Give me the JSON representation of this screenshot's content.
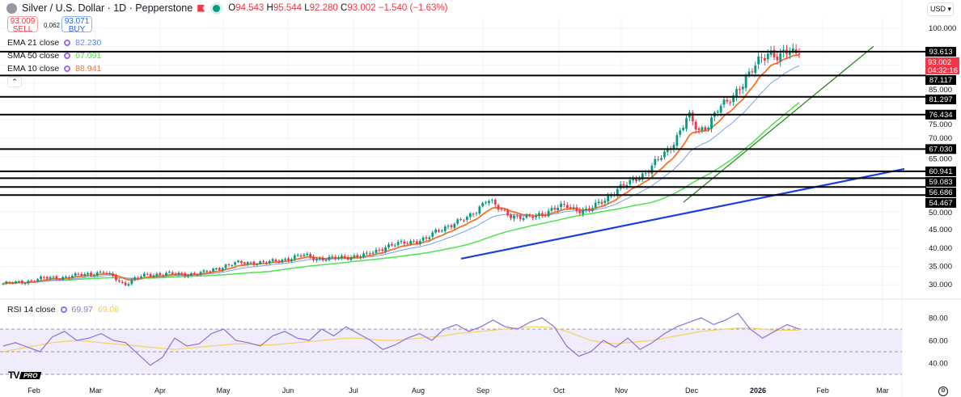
{
  "header": {
    "title": "Silver / U.S. Dollar · 1D · Pepperstone",
    "open_label": "O",
    "open": "94.543",
    "high_label": "H",
    "high": "95.544",
    "low_label": "L",
    "low": "92.280",
    "close_label": "C",
    "close": "93.002",
    "change": "−1.540 (−1.63%)"
  },
  "trade": {
    "sell_price": "93.009",
    "sell_label": "SELL",
    "spread": "0.062",
    "buy_price": "93.071",
    "buy_label": "BUY"
  },
  "indicators": [
    {
      "label": "EMA 21 close",
      "value": "82.230",
      "color": "#5b8af5"
    },
    {
      "label": "SMA 50 close",
      "value": "67.091",
      "color": "#4ee44e"
    },
    {
      "label": "EMA 10 close",
      "value": "88.941",
      "color": "#f7712a"
    }
  ],
  "rsi": {
    "label": "RSI 14 close",
    "value": "69.97",
    "ma_value": "69.08",
    "color": "#8e70d9",
    "ma_color": "#f6d25a",
    "levels": [
      "80.00",
      "60.00",
      "40.00"
    ]
  },
  "currency": "USD",
  "price_axis": [
    "100.000",
    "85.000",
    "75.000",
    "70.000",
    "65.000",
    "50.000",
    "45.000",
    "40.000",
    "35.000",
    "30.000"
  ],
  "level_lines": [
    "93.613",
    "87.117",
    "81.297",
    "76.434",
    "67.030",
    "60.941",
    "59.083",
    "56.686",
    "54.467"
  ],
  "last_price": {
    "value": "93.002",
    "countdown": "04:32:16",
    "color": "#f23645"
  },
  "time_axis": [
    "Feb",
    "Mar",
    "Apr",
    "May",
    "Jun",
    "Jul",
    "Aug",
    "Sep",
    "Oct",
    "Nov",
    "Dec",
    "2026",
    "Feb",
    "Mar"
  ],
  "colors": {
    "up": "#089981",
    "down": "#f23645",
    "trend_blue": "#1a3fe0",
    "trend_green": "#2e8b1f"
  },
  "chart_data": {
    "type": "candlestick",
    "approx_closes": [
      30.3,
      30.5,
      30.8,
      31.2,
      31.8,
      31.9,
      32.0,
      32.4,
      32.8,
      33.1,
      33.3,
      32.0,
      30.0,
      31.5,
      32.5,
      32.8,
      33.0,
      32.9,
      32.8,
      33.0,
      33.3,
      34.2,
      35.2,
      35.8,
      36.0,
      36.1,
      36.0,
      36.4,
      37.0,
      37.6,
      38.0,
      37.2,
      37.0,
      37.3,
      37.5,
      37.8,
      38.0,
      39.2,
      40.5,
      41.0,
      41.5,
      42.0,
      42.5,
      44.5,
      46.0,
      47.0,
      48.0,
      50.5,
      53.5,
      51.0,
      49.5,
      48.5,
      48.0,
      49.0,
      50.0,
      51.0,
      51.5,
      50.5,
      50.0,
      52.0,
      54.0,
      56.0,
      57.5,
      59.5,
      61.0,
      64.0,
      67.0,
      71.0,
      76.0,
      72.0,
      74.0,
      78.0,
      80.0,
      84.0,
      87.0,
      91.0,
      94.0,
      92.0,
      93.5,
      93.0
    ],
    "rsi_values": [
      55,
      58,
      54,
      50,
      63,
      68,
      60,
      62,
      66,
      60,
      58,
      48,
      38,
      45,
      62,
      55,
      57,
      66,
      70,
      60,
      58,
      55,
      64,
      68,
      62,
      60,
      70,
      64,
      72,
      66,
      60,
      52,
      56,
      62,
      66,
      60,
      70,
      74,
      68,
      72,
      78,
      72,
      70,
      76,
      80,
      72,
      55,
      46,
      50,
      60,
      54,
      62,
      52,
      58,
      66,
      72,
      76,
      80,
      74,
      78,
      84,
      70,
      62,
      68,
      74,
      70
    ],
    "rsi_ma_values": [
      50,
      52,
      54,
      56,
      58,
      59,
      60,
      59,
      58,
      57,
      56,
      55,
      54,
      53,
      52,
      53,
      54,
      55,
      56,
      57,
      57,
      56,
      56,
      57,
      58,
      59,
      60,
      61,
      62,
      62,
      61,
      60,
      60,
      61,
      62,
      63,
      64,
      66,
      67,
      68,
      69,
      70,
      71,
      72,
      72,
      71,
      68,
      64,
      60,
      58,
      57,
      58,
      59,
      60,
      62,
      64,
      66,
      68,
      69,
      70,
      71,
      71,
      70,
      69,
      69,
      69
    ],
    "rsi_ylim": [
      20,
      90
    ],
    "ylim": [
      25,
      105
    ],
    "x_range": [
      "2025-01-16",
      "2026-03-15"
    ]
  }
}
